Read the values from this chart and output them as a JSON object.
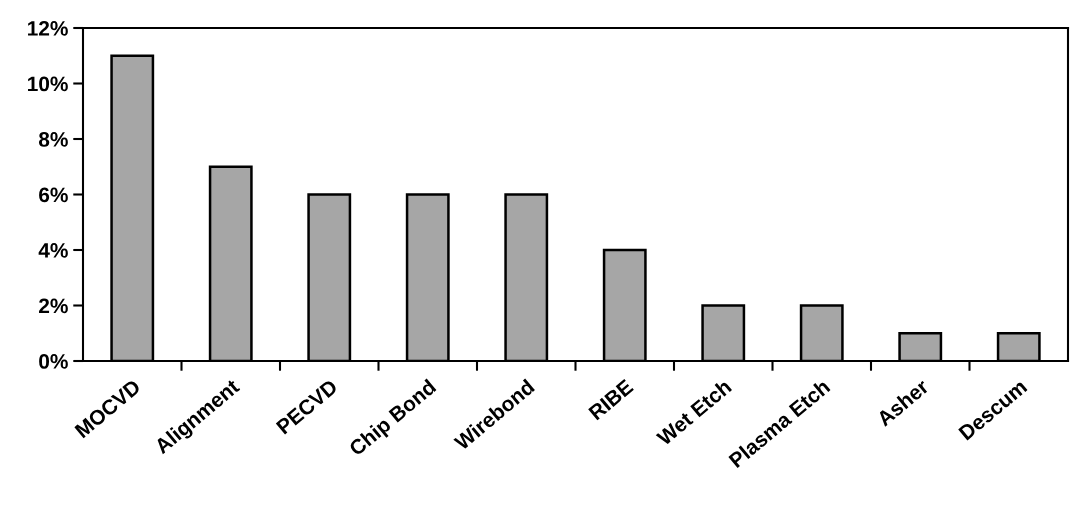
{
  "chart_data": {
    "type": "bar",
    "categories": [
      "MOCVD",
      "Alignment",
      "PECVD",
      "Chip Bond",
      "Wirebond",
      "RIBE",
      "Wet Etch",
      "Plasma Etch",
      "Asher",
      "Descum"
    ],
    "values": [
      11,
      7,
      6,
      6,
      6,
      4,
      2,
      2,
      1,
      1
    ],
    "color": "#a6a6a6",
    "ylim": [
      0,
      12
    ],
    "yticks": [
      {
        "value": 0,
        "label": "0%"
      },
      {
        "value": 2,
        "label": "2%"
      },
      {
        "value": 4,
        "label": "4%"
      },
      {
        "value": 6,
        "label": "6%"
      },
      {
        "value": 8,
        "label": "8%"
      },
      {
        "value": 10,
        "label": "10%"
      },
      {
        "value": 12,
        "label": "12%"
      }
    ],
    "grid": false,
    "legend": false
  }
}
